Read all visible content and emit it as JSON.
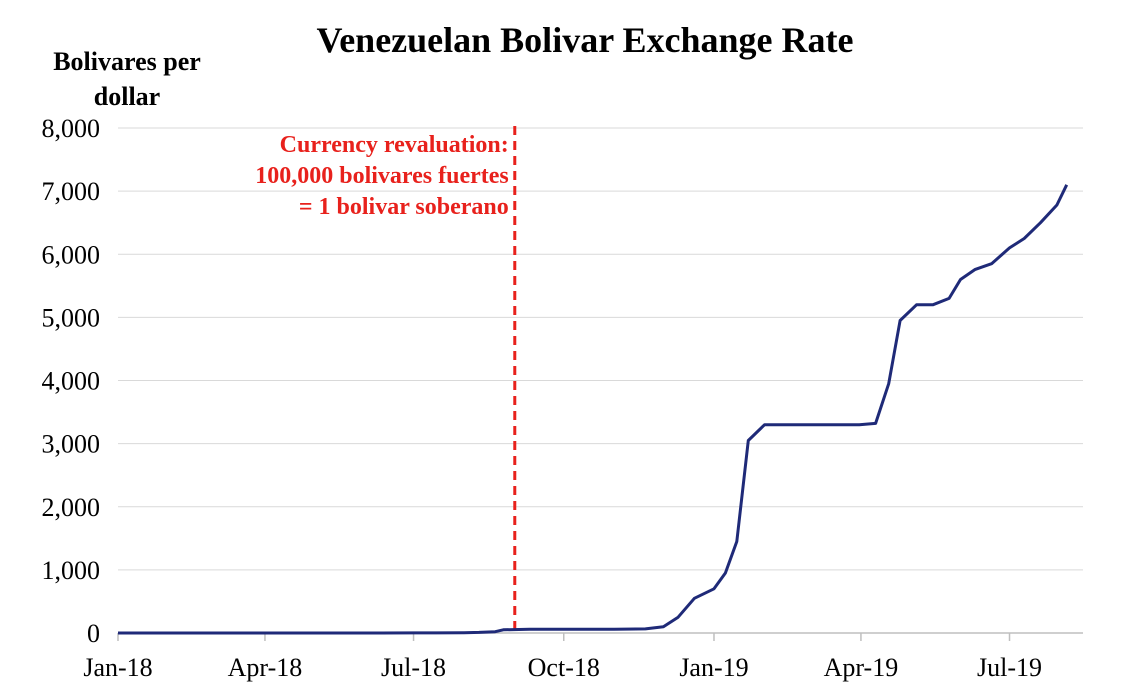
{
  "chart_data": {
    "type": "line",
    "title": "Venezuelan Bolivar Exchange Rate",
    "ylabel_lines": [
      "Bolivares per",
      "dollar"
    ],
    "xlabel": "",
    "ylim": [
      0,
      8000
    ],
    "y_ticks": [
      0,
      1000,
      2000,
      3000,
      4000,
      5000,
      6000,
      7000,
      8000
    ],
    "y_tick_labels": [
      "0",
      "1,000",
      "2,000",
      "3,000",
      "4,000",
      "5,000",
      "6,000",
      "7,000",
      "8,000"
    ],
    "x_ticks": [
      "2018-01",
      "2018-04",
      "2018-07",
      "2018-10",
      "2019-01",
      "2019-04",
      "2019-07"
    ],
    "x_tick_labels": [
      "Jan-18",
      "Apr-18",
      "Jul-18",
      "Oct-18",
      "Jan-19",
      "Apr-19",
      "Jul-19"
    ],
    "grid": true,
    "line_color": "#1f2a78",
    "series": [
      {
        "name": "",
        "points": [
          [
            "2018-01-01",
            0
          ],
          [
            "2018-02-01",
            0
          ],
          [
            "2018-03-01",
            0
          ],
          [
            "2018-04-01",
            0
          ],
          [
            "2018-05-01",
            0
          ],
          [
            "2018-06-01",
            0
          ],
          [
            "2018-07-01",
            1
          ],
          [
            "2018-07-15",
            2
          ],
          [
            "2018-08-01",
            5
          ],
          [
            "2018-08-10",
            10
          ],
          [
            "2018-08-20",
            20
          ],
          [
            "2018-08-25",
            50
          ],
          [
            "2018-09-10",
            60
          ],
          [
            "2018-10-01",
            60
          ],
          [
            "2018-11-01",
            60
          ],
          [
            "2018-11-20",
            65
          ],
          [
            "2018-12-01",
            100
          ],
          [
            "2018-12-10",
            250
          ],
          [
            "2018-12-20",
            550
          ],
          [
            "2019-01-01",
            700
          ],
          [
            "2019-01-08",
            950
          ],
          [
            "2019-01-15",
            1450
          ],
          [
            "2019-01-22",
            3050
          ],
          [
            "2019-02-01",
            3300
          ],
          [
            "2019-03-01",
            3300
          ],
          [
            "2019-03-31",
            3300
          ],
          [
            "2019-04-10",
            3320
          ],
          [
            "2019-04-18",
            3950
          ],
          [
            "2019-04-25",
            4950
          ],
          [
            "2019-05-05",
            5200
          ],
          [
            "2019-05-15",
            5200
          ],
          [
            "2019-05-25",
            5300
          ],
          [
            "2019-06-01",
            5600
          ],
          [
            "2019-06-10",
            5760
          ],
          [
            "2019-06-20",
            5850
          ],
          [
            "2019-07-01",
            6100
          ],
          [
            "2019-07-10",
            6250
          ],
          [
            "2019-07-20",
            6500
          ],
          [
            "2019-07-30",
            6780
          ],
          [
            "2019-08-05",
            7100
          ]
        ]
      }
    ],
    "annotation": {
      "date": "2018-09-01",
      "color": "#e8211c",
      "lines": [
        "Currency revaluation:",
        "100,000 bolivares fuertes",
        "= 1 bolivar soberano"
      ]
    }
  }
}
